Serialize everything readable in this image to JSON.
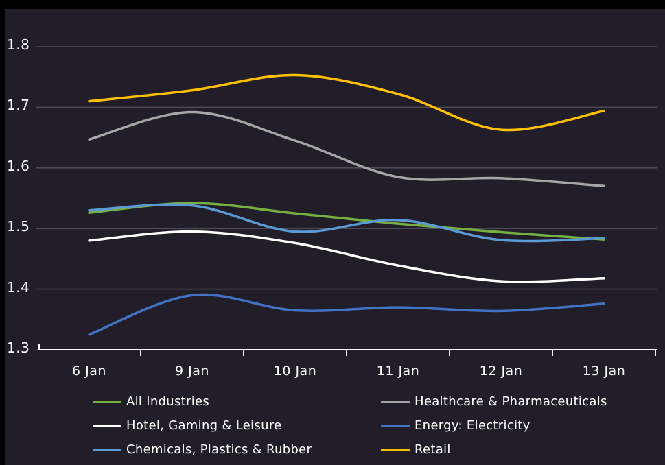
{
  "chart_data": {
    "type": "line",
    "title": "",
    "xlabel": "",
    "ylabel": "",
    "categories": [
      "6 Jan",
      "9 Jan",
      "10 Jan",
      "11 Jan",
      "12 Jan",
      "13 Jan"
    ],
    "yticks": [
      "1.8",
      "1.7",
      "1.6",
      "1.5",
      "1.4",
      "1.3"
    ],
    "ylim": [
      1.3,
      1.8
    ],
    "grid": "horizontal",
    "legend_position": "bottom",
    "background_color": "#211e2a",
    "gridline_color": "#4e4b56",
    "axis_color": "#ffffff",
    "series": [
      {
        "name": "All Industries",
        "color": "#74b042",
        "values": [
          1.526,
          1.542,
          1.525,
          1.508,
          1.494,
          1.482
        ]
      },
      {
        "name": "Healthcare & Pharmaceuticals",
        "color": "#a6a6a6",
        "values": [
          1.647,
          1.692,
          1.645,
          1.585,
          1.583,
          1.57
        ]
      },
      {
        "name": "Hotel, Gaming & Leisure",
        "color": "#ffffff",
        "values": [
          1.48,
          1.495,
          1.476,
          1.439,
          1.413,
          1.418
        ]
      },
      {
        "name": "Energy: Electricity",
        "color": "#4472c4",
        "values": [
          1.325,
          1.39,
          1.365,
          1.37,
          1.364,
          1.376
        ]
      },
      {
        "name": "Chemicals, Plastics & Rubber",
        "color": "#5b9bd5",
        "values": [
          1.53,
          1.538,
          1.495,
          1.514,
          1.481,
          1.484
        ]
      },
      {
        "name": "Retail",
        "color": "#ffc000",
        "values": [
          1.71,
          1.728,
          1.753,
          1.722,
          1.663,
          1.694
        ]
      }
    ]
  }
}
